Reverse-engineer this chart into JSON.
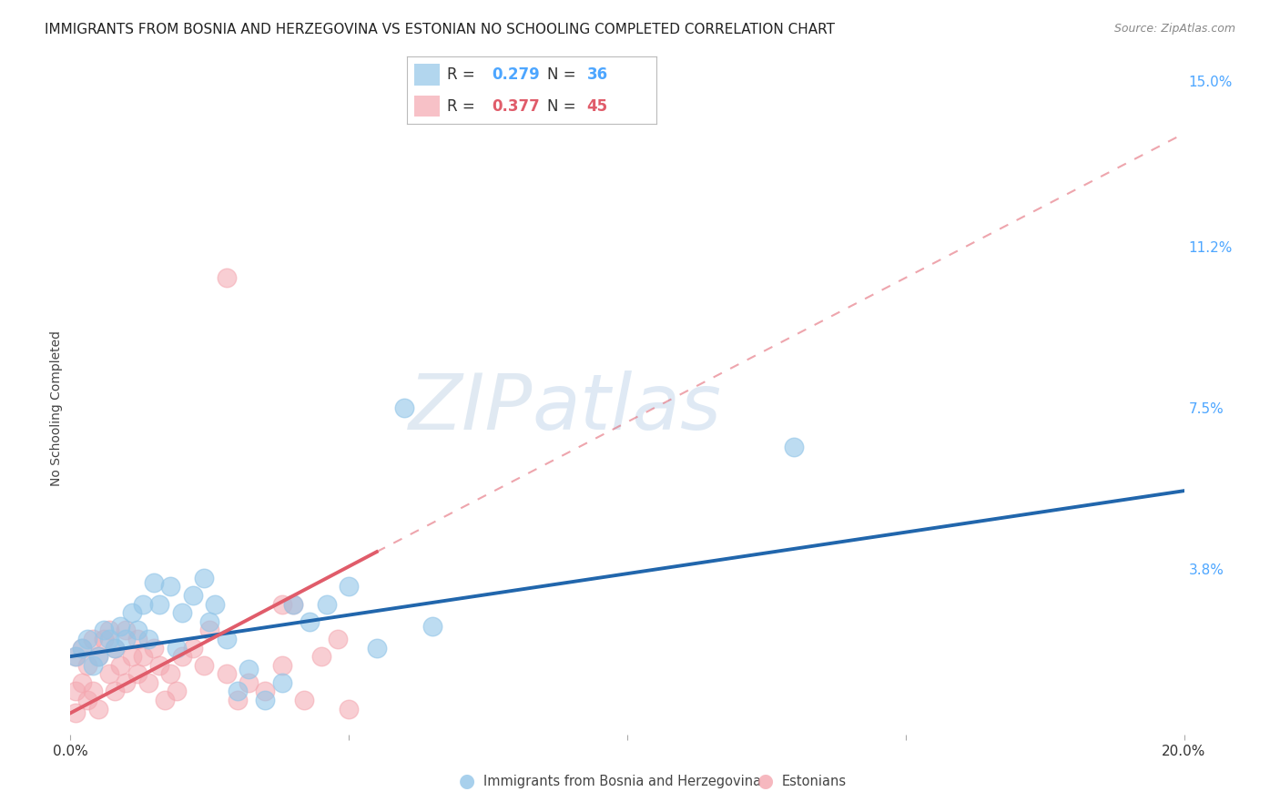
{
  "title": "IMMIGRANTS FROM BOSNIA AND HERZEGOVINA VS ESTONIAN NO SCHOOLING COMPLETED CORRELATION CHART",
  "source": "Source: ZipAtlas.com",
  "ylabel": "No Schooling Completed",
  "xlim": [
    0.0,
    0.2
  ],
  "ylim": [
    0.0,
    0.15
  ],
  "x_ticks": [
    0.0,
    0.05,
    0.1,
    0.15,
    0.2
  ],
  "x_tick_labels": [
    "0.0%",
    "",
    "",
    "",
    "20.0%"
  ],
  "y_ticks_right": [
    0.0,
    0.038,
    0.075,
    0.112,
    0.15
  ],
  "y_tick_labels_right": [
    "",
    "3.8%",
    "7.5%",
    "11.2%",
    "15.0%"
  ],
  "watermark_zip": "ZIP",
  "watermark_atlas": "atlas",
  "grid_color": "#cccccc",
  "blue_color": "#92c5e8",
  "pink_color": "#f4a7b0",
  "blue_line_color": "#2166ac",
  "pink_line_color": "#e05c6a",
  "background_color": "#ffffff",
  "title_fontsize": 11,
  "axis_label_fontsize": 10,
  "tick_fontsize": 11,
  "legend_fontsize": 12,
  "blue_r": "0.279",
  "blue_n": "36",
  "pink_r": "0.377",
  "pink_n": "45",
  "blue_line_x0": 0.0,
  "blue_line_y0": 0.018,
  "blue_line_x1": 0.2,
  "blue_line_y1": 0.056,
  "pink_line_solid_x0": 0.0,
  "pink_line_solid_y0": 0.005,
  "pink_line_solid_x1": 0.055,
  "pink_line_solid_y1": 0.042,
  "pink_line_dash_x0": 0.055,
  "pink_line_dash_y0": 0.042,
  "pink_line_dash_x1": 0.2,
  "pink_line_dash_y1": 0.138,
  "blue_scatter_x": [
    0.001,
    0.002,
    0.003,
    0.004,
    0.005,
    0.006,
    0.007,
    0.008,
    0.009,
    0.01,
    0.011,
    0.012,
    0.013,
    0.014,
    0.015,
    0.016,
    0.018,
    0.019,
    0.02,
    0.022,
    0.024,
    0.025,
    0.026,
    0.028,
    0.03,
    0.032,
    0.035,
    0.038,
    0.04,
    0.043,
    0.046,
    0.05,
    0.06,
    0.13,
    0.065,
    0.055
  ],
  "blue_scatter_y": [
    0.018,
    0.02,
    0.022,
    0.016,
    0.018,
    0.024,
    0.022,
    0.02,
    0.025,
    0.022,
    0.028,
    0.024,
    0.03,
    0.022,
    0.035,
    0.03,
    0.034,
    0.02,
    0.028,
    0.032,
    0.036,
    0.026,
    0.03,
    0.022,
    0.01,
    0.015,
    0.008,
    0.012,
    0.03,
    0.026,
    0.03,
    0.034,
    0.075,
    0.066,
    0.025,
    0.02
  ],
  "pink_scatter_x": [
    0.001,
    0.001,
    0.001,
    0.002,
    0.002,
    0.003,
    0.003,
    0.004,
    0.004,
    0.005,
    0.005,
    0.006,
    0.007,
    0.007,
    0.008,
    0.008,
    0.009,
    0.01,
    0.01,
    0.011,
    0.012,
    0.012,
    0.013,
    0.014,
    0.015,
    0.016,
    0.017,
    0.018,
    0.019,
    0.02,
    0.022,
    0.024,
    0.025,
    0.028,
    0.03,
    0.032,
    0.035,
    0.038,
    0.038,
    0.04,
    0.042,
    0.045,
    0.048,
    0.05,
    0.028
  ],
  "pink_scatter_y": [
    0.005,
    0.01,
    0.018,
    0.012,
    0.02,
    0.008,
    0.016,
    0.01,
    0.022,
    0.006,
    0.018,
    0.022,
    0.014,
    0.024,
    0.01,
    0.02,
    0.016,
    0.012,
    0.024,
    0.018,
    0.022,
    0.014,
    0.018,
    0.012,
    0.02,
    0.016,
    0.008,
    0.014,
    0.01,
    0.018,
    0.02,
    0.016,
    0.024,
    0.014,
    0.008,
    0.012,
    0.01,
    0.016,
    0.03,
    0.03,
    0.008,
    0.018,
    0.022,
    0.006,
    0.105
  ]
}
